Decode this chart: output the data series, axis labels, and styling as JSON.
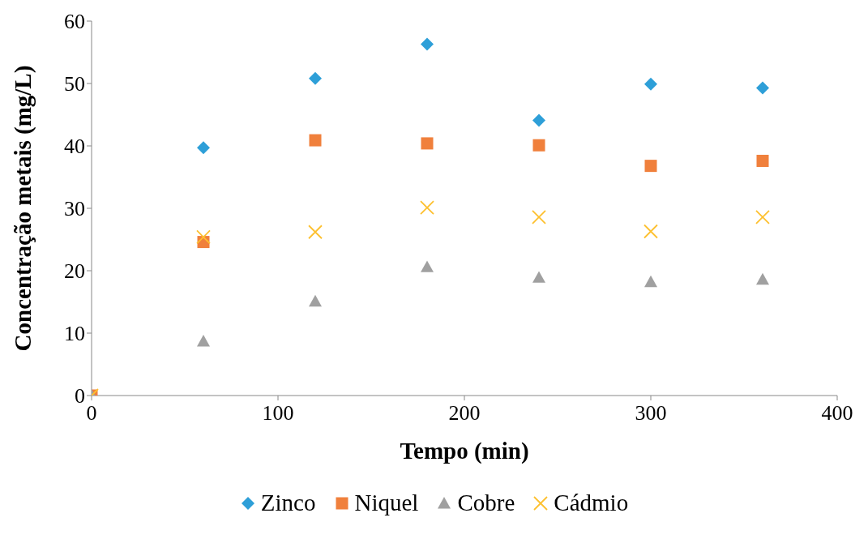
{
  "chart_data": {
    "type": "scatter",
    "xlabel": "Tempo (min)",
    "ylabel": "Concentração metais (mg/L)",
    "x": [
      0,
      60,
      120,
      180,
      240,
      300,
      360
    ],
    "series": [
      {
        "name": "Zinco",
        "color": "#2e9fd8",
        "marker": "diamond",
        "values": [
          null,
          39.7,
          50.8,
          56.3,
          44.1,
          49.9,
          49.3
        ]
      },
      {
        "name": "Niquel",
        "color": "#f0803c",
        "marker": "square",
        "values": [
          0,
          24.6,
          40.9,
          40.4,
          40.1,
          36.8,
          37.6
        ]
      },
      {
        "name": "Cobre",
        "color": "#a0a0a0",
        "marker": "triangle",
        "values": [
          0,
          8.7,
          15.1,
          20.6,
          18.9,
          18.2,
          18.6
        ]
      },
      {
        "name": "Cádmio",
        "color": "#fdc02f",
        "marker": "cross",
        "values": [
          0,
          25.4,
          26.2,
          30.1,
          28.6,
          26.3,
          28.6
        ]
      }
    ],
    "xlim": [
      0,
      400
    ],
    "xticks": [
      0,
      100,
      200,
      300,
      400
    ],
    "ylim": [
      0,
      60
    ],
    "yticks": [
      0,
      10,
      20,
      30,
      40,
      50,
      60
    ],
    "grid": false,
    "legend": "bottom"
  }
}
